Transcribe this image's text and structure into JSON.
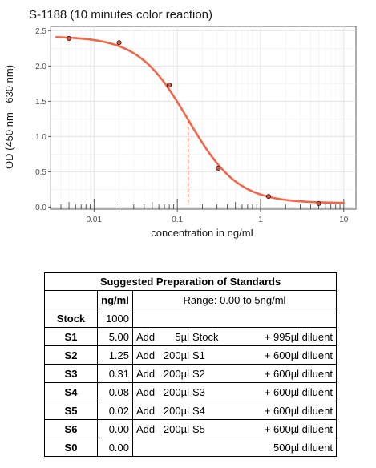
{
  "chart_data": {
    "type": "scatter",
    "title": "S-1188 (10 minutes color reaction)",
    "xlabel": "concentration in ng/mL",
    "ylabel": "OD (450 nm - 630 nm)",
    "x_scale": "log",
    "xlim": [
      0.003,
      14
    ],
    "ylim": [
      -0.03,
      2.56
    ],
    "x_ticks": [
      {
        "value": 0.01,
        "label": "0.01"
      },
      {
        "value": 0.1,
        "label": "0.1"
      },
      {
        "value": 1,
        "label": "1"
      },
      {
        "value": 10,
        "label": "10"
      }
    ],
    "y_ticks": [
      {
        "value": 0.0,
        "label": "0.0"
      },
      {
        "value": 0.5,
        "label": "0.5"
      },
      {
        "value": 1.0,
        "label": "1.0"
      },
      {
        "value": 1.5,
        "label": "1.5"
      },
      {
        "value": 2.0,
        "label": "2.0"
      },
      {
        "value": 2.5,
        "label": "2.5"
      }
    ],
    "grid": true,
    "points": [
      {
        "x": 0.005,
        "y": 2.39
      },
      {
        "x": 0.02,
        "y": 2.33
      },
      {
        "x": 0.08,
        "y": 1.73
      },
      {
        "x": 0.31,
        "y": 0.55
      },
      {
        "x": 1.25,
        "y": 0.15
      },
      {
        "x": 5.0,
        "y": 0.05
      }
    ],
    "fit": {
      "top": 2.42,
      "bottom": 0.055,
      "ec50": 0.135,
      "hill": 1.45
    },
    "ec50_marker": {
      "x": 0.135,
      "y_from": 0.06,
      "y_to": 1.24
    },
    "curve_color": "#f26649",
    "point_color": "#e0553e"
  },
  "table": {
    "caption": "Suggested Preparation of Standards",
    "unit_header": "ng/ml",
    "range_text": "Range: 0.00 to 5ng/ml",
    "stock": {
      "id": "Stock",
      "value": "1000"
    },
    "rows": [
      {
        "id": "S1",
        "value": "5.00",
        "add": "Add",
        "vol": "5µl",
        "src": "Stock",
        "diluent": "+ 995µl diluent"
      },
      {
        "id": "S2",
        "value": "1.25",
        "add": "Add",
        "vol": "200µl",
        "src": "S1",
        "diluent": "+ 600µl diluent"
      },
      {
        "id": "S3",
        "value": "0.31",
        "add": "Add",
        "vol": "200µl",
        "src": "S2",
        "diluent": "+ 600µl diluent"
      },
      {
        "id": "S4",
        "value": "0.08",
        "add": "Add",
        "vol": "200µl",
        "src": "S3",
        "diluent": "+ 600µl diluent"
      },
      {
        "id": "S5",
        "value": "0.02",
        "add": "Add",
        "vol": "200µl",
        "src": "S4",
        "diluent": "+ 600µl diluent"
      },
      {
        "id": "S6",
        "value": "0.00",
        "add": "Add",
        "vol": "200µl",
        "src": "S5",
        "diluent": "+ 600µl diluent"
      }
    ],
    "zero": {
      "id": "S0",
      "value": "0.00",
      "diluent": "500µl diluent"
    }
  }
}
